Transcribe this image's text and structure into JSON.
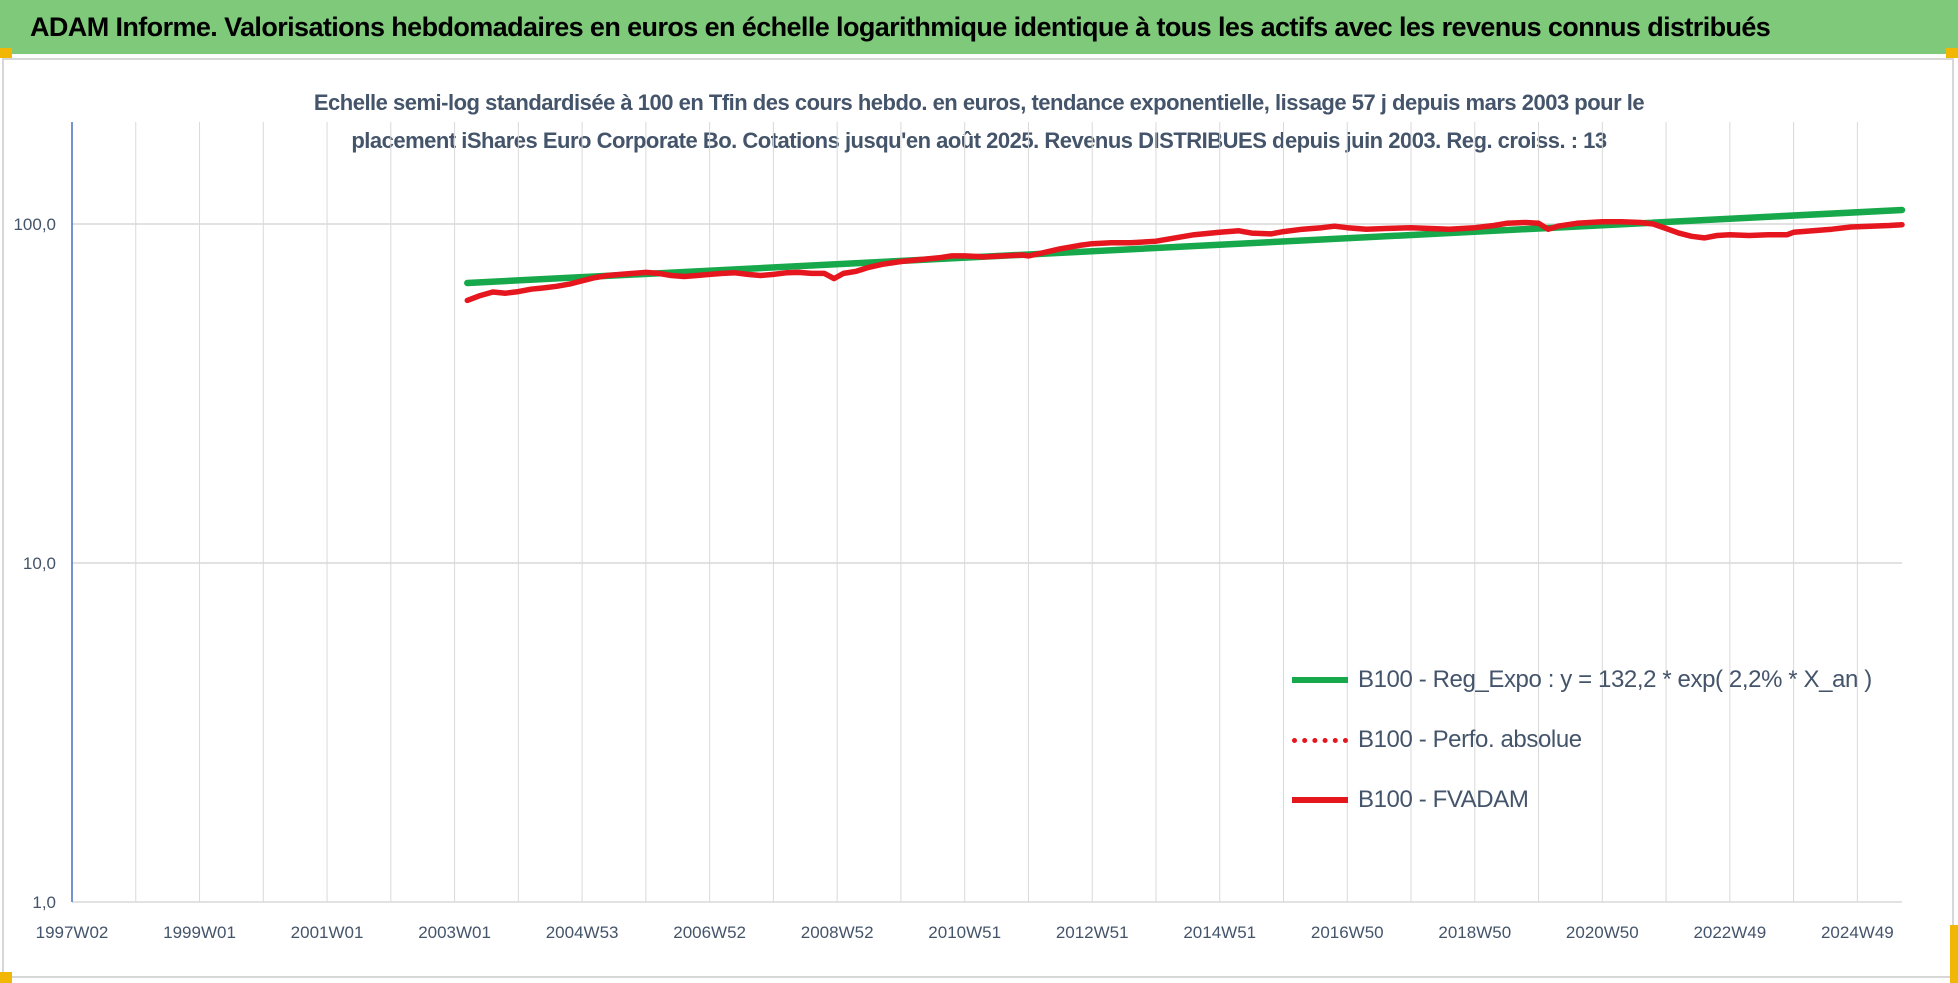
{
  "header": {
    "title": "ADAM Informe. Valorisations hebdomadaires en euros en échelle logarithmique identique à tous les actifs avec les revenus connus distribués"
  },
  "colors": {
    "header_bg": "#7ec97a",
    "trend": "#16a84b",
    "fvadam": "#e5161d",
    "perfo": "#e5161d",
    "grid": "#d9d9d9",
    "axis_text": "#44546a",
    "corner_marker": "#f2b705"
  },
  "chart_data": {
    "type": "line",
    "title_lines": [
      "Echelle semi-log standardisée à 100 en Tfin des cours hebdo. en euros, tendance exponentielle, lissage 57 j depuis mars 2003 pour le",
      "placement iShares Euro Corporate Bo. Cotations jusqu'en août 2025. Revenus DISTRIBUES depuis juin 2003. Reg. croiss. : 13"
    ],
    "y_scale": "log",
    "ylim": [
      1,
      200
    ],
    "y_ticks": [
      {
        "value": 1,
        "label": "1,0"
      },
      {
        "value": 10,
        "label": "10,0"
      },
      {
        "value": 100,
        "label": "100,0"
      }
    ],
    "xlim": [
      1997.0,
      2025.7
    ],
    "x_ticks": [
      {
        "value": 1997.0,
        "label": "1997W02"
      },
      {
        "value": 1999.0,
        "label": "1999W01"
      },
      {
        "value": 2001.0,
        "label": "2001W01"
      },
      {
        "value": 2003.0,
        "label": "2003W01"
      },
      {
        "value": 2005.0,
        "label": "2004W53"
      },
      {
        "value": 2007.0,
        "label": "2006W52"
      },
      {
        "value": 2009.0,
        "label": "2008W52"
      },
      {
        "value": 2011.0,
        "label": "2010W51"
      },
      {
        "value": 2013.0,
        "label": "2012W51"
      },
      {
        "value": 2015.0,
        "label": "2014W51"
      },
      {
        "value": 2017.0,
        "label": "2016W50"
      },
      {
        "value": 2019.0,
        "label": "2018W50"
      },
      {
        "value": 2021.0,
        "label": "2020W50"
      },
      {
        "value": 2023.0,
        "label": "2022W49"
      },
      {
        "value": 2025.0,
        "label": "2024W49"
      }
    ],
    "x_gridlines": [
      1997.0,
      1998.0,
      1999.0,
      2000.0,
      2001.0,
      2002.0,
      2003.0,
      2004.0,
      2005.0,
      2006.0,
      2007.0,
      2008.0,
      2009.0,
      2010.0,
      2011.0,
      2012.0,
      2013.0,
      2014.0,
      2015.0,
      2016.0,
      2017.0,
      2018.0,
      2019.0,
      2020.0,
      2021.0,
      2022.0,
      2023.0,
      2024.0,
      2025.0
    ],
    "grid": true,
    "legend_position": "bottom-right",
    "series": [
      {
        "name": "B100 - Reg_Expo : y = 132,2 * exp( 2,2% *  X_an )",
        "style": "solid",
        "color": "#16a84b",
        "points": [
          [
            2003.2,
            67.0
          ],
          [
            2025.7,
            110.0
          ]
        ]
      },
      {
        "name": "B100 - Perfo. absolue",
        "style": "dotted",
        "color": "#e5161d",
        "points": []
      },
      {
        "name": "B100 - FVADAM",
        "style": "solid",
        "color": "#e5161d",
        "points": [
          [
            2003.2,
            59.5
          ],
          [
            2003.4,
            61.5
          ],
          [
            2003.6,
            63.0
          ],
          [
            2003.8,
            62.5
          ],
          [
            2004.0,
            63.2
          ],
          [
            2004.2,
            64.2
          ],
          [
            2004.4,
            64.8
          ],
          [
            2004.6,
            65.5
          ],
          [
            2004.8,
            66.5
          ],
          [
            2005.0,
            68.0
          ],
          [
            2005.2,
            69.5
          ],
          [
            2005.4,
            70.5
          ],
          [
            2005.6,
            71.0
          ],
          [
            2005.8,
            71.5
          ],
          [
            2006.0,
            72.0
          ],
          [
            2006.2,
            71.5
          ],
          [
            2006.4,
            70.5
          ],
          [
            2006.6,
            70.0
          ],
          [
            2006.8,
            70.5
          ],
          [
            2007.0,
            71.0
          ],
          [
            2007.2,
            71.5
          ],
          [
            2007.4,
            71.8
          ],
          [
            2007.6,
            71.0
          ],
          [
            2007.8,
            70.5
          ],
          [
            2008.0,
            71.0
          ],
          [
            2008.2,
            71.8
          ],
          [
            2008.4,
            72.0
          ],
          [
            2008.6,
            71.5
          ],
          [
            2008.8,
            71.5
          ],
          [
            2008.95,
            69.0
          ],
          [
            2009.1,
            71.5
          ],
          [
            2009.3,
            72.5
          ],
          [
            2009.5,
            74.5
          ],
          [
            2009.7,
            76.0
          ],
          [
            2010.0,
            77.5
          ],
          [
            2010.3,
            78.5
          ],
          [
            2010.6,
            79.5
          ],
          [
            2010.8,
            80.5
          ],
          [
            2011.0,
            80.5
          ],
          [
            2011.3,
            80.0
          ],
          [
            2011.6,
            80.5
          ],
          [
            2011.9,
            81.0
          ],
          [
            2012.0,
            80.5
          ],
          [
            2012.2,
            82.0
          ],
          [
            2012.5,
            84.5
          ],
          [
            2012.8,
            86.5
          ],
          [
            2013.0,
            87.5
          ],
          [
            2013.3,
            88.0
          ],
          [
            2013.6,
            88.0
          ],
          [
            2014.0,
            89.0
          ],
          [
            2014.3,
            91.0
          ],
          [
            2014.6,
            93.0
          ],
          [
            2015.0,
            94.5
          ],
          [
            2015.3,
            95.5
          ],
          [
            2015.5,
            94.0
          ],
          [
            2015.8,
            93.5
          ],
          [
            2016.0,
            95.0
          ],
          [
            2016.3,
            96.5
          ],
          [
            2016.6,
            97.5
          ],
          [
            2016.8,
            98.5
          ],
          [
            2017.0,
            97.5
          ],
          [
            2017.3,
            96.5
          ],
          [
            2017.6,
            97.0
          ],
          [
            2018.0,
            97.5
          ],
          [
            2018.3,
            97.0
          ],
          [
            2018.6,
            96.5
          ],
          [
            2019.0,
            97.5
          ],
          [
            2019.3,
            99.0
          ],
          [
            2019.5,
            100.5
          ],
          [
            2019.8,
            101.0
          ],
          [
            2020.0,
            100.5
          ],
          [
            2020.15,
            96.5
          ],
          [
            2020.3,
            98.5
          ],
          [
            2020.6,
            100.5
          ],
          [
            2021.0,
            101.5
          ],
          [
            2021.3,
            101.5
          ],
          [
            2021.6,
            101.0
          ],
          [
            2021.8,
            100.0
          ],
          [
            2022.0,
            97.0
          ],
          [
            2022.2,
            94.0
          ],
          [
            2022.4,
            92.0
          ],
          [
            2022.6,
            91.0
          ],
          [
            2022.8,
            92.5
          ],
          [
            2023.0,
            93.0
          ],
          [
            2023.3,
            92.5
          ],
          [
            2023.6,
            93.0
          ],
          [
            2023.9,
            93.0
          ],
          [
            2024.0,
            94.5
          ],
          [
            2024.3,
            95.5
          ],
          [
            2024.6,
            96.5
          ],
          [
            2024.9,
            98.0
          ],
          [
            2025.2,
            98.5
          ],
          [
            2025.5,
            99.0
          ],
          [
            2025.7,
            99.5
          ]
        ]
      }
    ]
  }
}
